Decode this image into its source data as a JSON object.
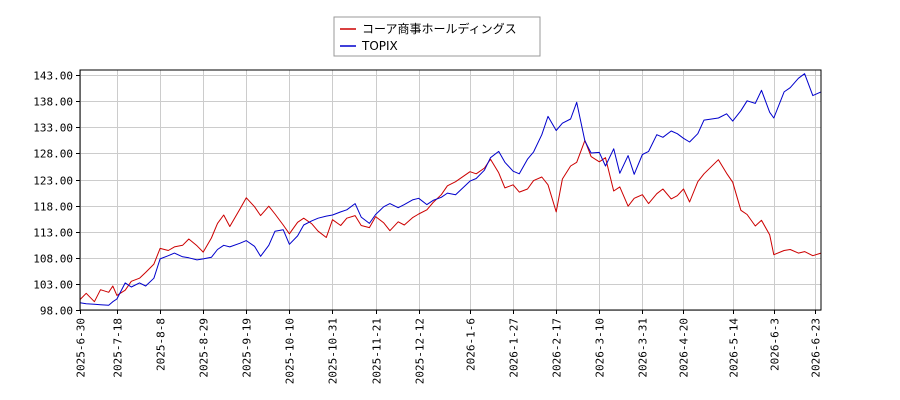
{
  "chart_data": {
    "type": "line",
    "title": "",
    "xlabel": "",
    "ylabel": "",
    "ylim": [
      98.0,
      144.0
    ],
    "y_ticks": [
      "98.00",
      "103.00",
      "108.00",
      "113.00",
      "118.00",
      "123.00",
      "128.00",
      "133.00",
      "138.00",
      "143.00"
    ],
    "x_range": [
      "2025-6-30",
      "2026-6-26"
    ],
    "x_ticks": [
      "2025-6-30",
      "2025-7-18",
      "2025-8-8",
      "2025-8-29",
      "2025-9-19",
      "2025-10-10",
      "2025-10-31",
      "2025-11-21",
      "2025-12-12",
      "2026-1-6",
      "2026-1-27",
      "2026-2-17",
      "2026-3-10",
      "2026-3-31",
      "2026-4-20",
      "2026-5-14",
      "2026-6-3",
      "2026-6-23"
    ],
    "grid": true,
    "legend_position": "top-center",
    "series": [
      {
        "name": "コーア商事ホールディングス",
        "color": "#cc0000",
        "points": [
          [
            "2025-6-30",
            100.0
          ],
          [
            "2025-7-3",
            101.2
          ],
          [
            "2025-7-7",
            99.6
          ],
          [
            "2025-7-10",
            101.9
          ],
          [
            "2025-7-14",
            101.4
          ],
          [
            "2025-7-16",
            102.6
          ],
          [
            "2025-7-18",
            100.8
          ],
          [
            "2025-7-22",
            101.8
          ],
          [
            "2025-7-25",
            103.5
          ],
          [
            "2025-7-29",
            104.1
          ],
          [
            "2025-8-1",
            105.2
          ],
          [
            "2025-8-5",
            106.8
          ],
          [
            "2025-8-8",
            109.8
          ],
          [
            "2025-8-12",
            109.4
          ],
          [
            "2025-8-15",
            110.1
          ],
          [
            "2025-8-19",
            110.4
          ],
          [
            "2025-8-22",
            111.6
          ],
          [
            "2025-8-26",
            110.3
          ],
          [
            "2025-8-29",
            109.1
          ],
          [
            "2025-9-2",
            111.8
          ],
          [
            "2025-9-5",
            114.6
          ],
          [
            "2025-9-8",
            116.2
          ],
          [
            "2025-9-11",
            114.0
          ],
          [
            "2025-9-16",
            117.4
          ],
          [
            "2025-9-19",
            119.5
          ],
          [
            "2025-9-23",
            117.8
          ],
          [
            "2025-9-26",
            116.1
          ],
          [
            "2025-9-30",
            117.9
          ],
          [
            "2025-10-3",
            116.4
          ],
          [
            "2025-10-7",
            114.3
          ],
          [
            "2025-10-10",
            112.6
          ],
          [
            "2025-10-14",
            114.8
          ],
          [
            "2025-10-17",
            115.6
          ],
          [
            "2025-10-21",
            114.5
          ],
          [
            "2025-10-24",
            113.1
          ],
          [
            "2025-10-28",
            111.9
          ],
          [
            "2025-10-31",
            115.3
          ],
          [
            "2025-11-4",
            114.2
          ],
          [
            "2025-11-7",
            115.6
          ],
          [
            "2025-11-11",
            116.1
          ],
          [
            "2025-11-14",
            114.2
          ],
          [
            "2025-11-18",
            113.8
          ],
          [
            "2025-11-21",
            115.9
          ],
          [
            "2025-11-25",
            114.7
          ],
          [
            "2025-11-28",
            113.2
          ],
          [
            "2025-12-2",
            114.9
          ],
          [
            "2025-12-5",
            114.3
          ],
          [
            "2025-12-9",
            115.7
          ],
          [
            "2025-12-12",
            116.4
          ],
          [
            "2025-12-16",
            117.2
          ],
          [
            "2025-12-19",
            118.6
          ],
          [
            "2025-12-23",
            120.1
          ],
          [
            "2025-12-26",
            121.8
          ],
          [
            "2025-12-30",
            122.6
          ],
          [
            "2026-1-6",
            124.5
          ],
          [
            "2026-1-9",
            124.1
          ],
          [
            "2026-1-13",
            125.2
          ],
          [
            "2026-1-16",
            126.9
          ],
          [
            "2026-1-20",
            124.3
          ],
          [
            "2026-1-23",
            121.4
          ],
          [
            "2026-1-27",
            122.0
          ],
          [
            "2026-1-30",
            120.6
          ],
          [
            "2026-2-3",
            121.2
          ],
          [
            "2026-2-6",
            122.8
          ],
          [
            "2026-2-10",
            123.5
          ],
          [
            "2026-2-13",
            122.0
          ],
          [
            "2026-2-17",
            116.8
          ],
          [
            "2026-2-20",
            123.1
          ],
          [
            "2026-2-24",
            125.6
          ],
          [
            "2026-2-27",
            126.3
          ],
          [
            "2026-3-3",
            130.5
          ],
          [
            "2026-3-6",
            127.4
          ],
          [
            "2026-3-10",
            126.4
          ],
          [
            "2026-3-13",
            127.2
          ],
          [
            "2026-3-17",
            120.8
          ],
          [
            "2026-3-20",
            121.6
          ],
          [
            "2026-3-24",
            117.9
          ],
          [
            "2026-3-27",
            119.4
          ],
          [
            "2026-3-31",
            120.1
          ],
          [
            "2026-4-3",
            118.4
          ],
          [
            "2026-4-7",
            120.3
          ],
          [
            "2026-4-10",
            121.2
          ],
          [
            "2026-4-14",
            119.3
          ],
          [
            "2026-4-17",
            119.9
          ],
          [
            "2026-4-20",
            121.2
          ],
          [
            "2026-4-23",
            118.7
          ],
          [
            "2026-4-27",
            122.6
          ],
          [
            "2026-4-30",
            124.1
          ],
          [
            "2026-5-7",
            126.8
          ],
          [
            "2026-5-11",
            124.2
          ],
          [
            "2026-5-14",
            122.5
          ],
          [
            "2026-5-18",
            117.1
          ],
          [
            "2026-5-21",
            116.3
          ],
          [
            "2026-5-25",
            114.1
          ],
          [
            "2026-5-28",
            115.2
          ],
          [
            "2026-6-1",
            112.4
          ],
          [
            "2026-6-3",
            108.6
          ],
          [
            "2026-6-8",
            109.4
          ],
          [
            "2026-6-11",
            109.6
          ],
          [
            "2026-6-15",
            108.9
          ],
          [
            "2026-6-18",
            109.2
          ],
          [
            "2026-6-22",
            108.4
          ],
          [
            "2026-6-26",
            108.9
          ]
        ]
      },
      {
        "name": "TOPIX",
        "color": "#0000cc",
        "points": [
          [
            "2025-6-30",
            99.4
          ],
          [
            "2025-7-3",
            99.2
          ],
          [
            "2025-7-7",
            99.1
          ],
          [
            "2025-7-10",
            99.0
          ],
          [
            "2025-7-14",
            98.9
          ],
          [
            "2025-7-16",
            99.6
          ],
          [
            "2025-7-18",
            100.1
          ],
          [
            "2025-7-22",
            103.2
          ],
          [
            "2025-7-25",
            102.4
          ],
          [
            "2025-7-29",
            103.2
          ],
          [
            "2025-8-1",
            102.6
          ],
          [
            "2025-8-5",
            104.1
          ],
          [
            "2025-8-8",
            107.8
          ],
          [
            "2025-8-12",
            108.4
          ],
          [
            "2025-8-15",
            108.9
          ],
          [
            "2025-8-19",
            108.2
          ],
          [
            "2025-8-22",
            108.0
          ],
          [
            "2025-8-26",
            107.6
          ],
          [
            "2025-8-29",
            107.8
          ],
          [
            "2025-9-2",
            108.1
          ],
          [
            "2025-9-5",
            109.6
          ],
          [
            "2025-9-8",
            110.4
          ],
          [
            "2025-9-11",
            110.1
          ],
          [
            "2025-9-16",
            110.8
          ],
          [
            "2025-9-19",
            111.3
          ],
          [
            "2025-9-23",
            110.2
          ],
          [
            "2025-9-26",
            108.3
          ],
          [
            "2025-9-30",
            110.4
          ],
          [
            "2025-10-3",
            113.1
          ],
          [
            "2025-10-7",
            113.4
          ],
          [
            "2025-10-10",
            110.6
          ],
          [
            "2025-10-14",
            112.2
          ],
          [
            "2025-10-17",
            114.3
          ],
          [
            "2025-10-21",
            115.1
          ],
          [
            "2025-10-24",
            115.6
          ],
          [
            "2025-10-28",
            116.0
          ],
          [
            "2025-10-31",
            116.2
          ],
          [
            "2025-11-4",
            116.8
          ],
          [
            "2025-11-7",
            117.2
          ],
          [
            "2025-11-11",
            118.4
          ],
          [
            "2025-11-14",
            115.8
          ],
          [
            "2025-11-18",
            114.6
          ],
          [
            "2025-11-21",
            116.3
          ],
          [
            "2025-11-25",
            117.8
          ],
          [
            "2025-11-28",
            118.4
          ],
          [
            "2025-12-2",
            117.6
          ],
          [
            "2025-12-5",
            118.2
          ],
          [
            "2025-12-9",
            119.1
          ],
          [
            "2025-12-12",
            119.4
          ],
          [
            "2025-12-16",
            118.2
          ],
          [
            "2025-12-19",
            119.0
          ],
          [
            "2025-12-23",
            119.6
          ],
          [
            "2025-12-26",
            120.4
          ],
          [
            "2025-12-30",
            120.1
          ],
          [
            "2026-1-6",
            122.7
          ],
          [
            "2026-1-9",
            123.2
          ],
          [
            "2026-1-13",
            124.8
          ],
          [
            "2026-1-16",
            127.2
          ],
          [
            "2026-1-20",
            128.4
          ],
          [
            "2026-1-23",
            126.3
          ],
          [
            "2026-1-27",
            124.6
          ],
          [
            "2026-1-30",
            124.1
          ],
          [
            "2026-2-3",
            126.9
          ],
          [
            "2026-2-6",
            128.3
          ],
          [
            "2026-2-10",
            131.6
          ],
          [
            "2026-2-13",
            135.1
          ],
          [
            "2026-2-17",
            132.4
          ],
          [
            "2026-2-20",
            133.8
          ],
          [
            "2026-2-24",
            134.6
          ],
          [
            "2026-2-27",
            137.8
          ],
          [
            "2026-3-3",
            130.4
          ],
          [
            "2026-3-6",
            128.1
          ],
          [
            "2026-3-10",
            128.2
          ],
          [
            "2026-3-13",
            125.6
          ],
          [
            "2026-3-17",
            128.9
          ],
          [
            "2026-3-20",
            124.2
          ],
          [
            "2026-3-24",
            127.6
          ],
          [
            "2026-3-27",
            124.0
          ],
          [
            "2026-3-31",
            127.8
          ],
          [
            "2026-4-3",
            128.4
          ],
          [
            "2026-4-7",
            131.6
          ],
          [
            "2026-4-10",
            131.1
          ],
          [
            "2026-4-14",
            132.3
          ],
          [
            "2026-4-17",
            131.8
          ],
          [
            "2026-4-20",
            130.9
          ],
          [
            "2026-4-23",
            130.2
          ],
          [
            "2026-4-27",
            131.8
          ],
          [
            "2026-4-30",
            134.4
          ],
          [
            "2026-5-7",
            134.8
          ],
          [
            "2026-5-11",
            135.6
          ],
          [
            "2026-5-14",
            134.2
          ],
          [
            "2026-5-18",
            136.2
          ],
          [
            "2026-5-21",
            138.1
          ],
          [
            "2026-5-25",
            137.6
          ],
          [
            "2026-5-28",
            140.1
          ],
          [
            "2026-6-1",
            135.9
          ],
          [
            "2026-6-3",
            134.8
          ],
          [
            "2026-6-8",
            139.8
          ],
          [
            "2026-6-11",
            140.6
          ],
          [
            "2026-6-15",
            142.4
          ],
          [
            "2026-6-18",
            143.3
          ],
          [
            "2026-6-22",
            139.1
          ],
          [
            "2026-6-26",
            139.8
          ]
        ]
      }
    ]
  }
}
